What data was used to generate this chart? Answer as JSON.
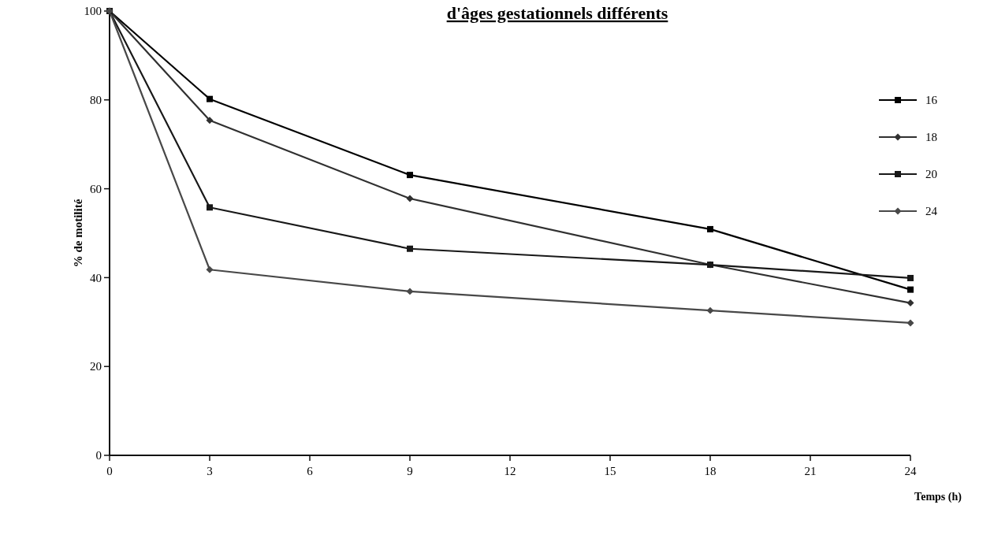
{
  "chart_data": {
    "type": "line",
    "title": "d'âges gestationnels différents",
    "xlabel": "Temps (h)",
    "ylabel": "% de motilité",
    "x": [
      0,
      3,
      9,
      18,
      24
    ],
    "xlim": [
      0,
      24
    ],
    "xticks": [
      0,
      3,
      6,
      9,
      12,
      15,
      18,
      21,
      24
    ],
    "ylim": [
      0,
      100
    ],
    "yticks": [
      0,
      20,
      40,
      60,
      80,
      100
    ],
    "grid": false,
    "legend": "right",
    "line_style": "solid",
    "series": [
      {
        "name": "16",
        "color": "#000000",
        "marker": "square",
        "values": [
          100,
          80.2,
          63.1,
          50.9,
          37.3
        ]
      },
      {
        "name": "18",
        "color": "#303030",
        "marker": "diamond",
        "values": [
          100,
          75.4,
          57.8,
          42.9,
          34.3
        ]
      },
      {
        "name": "20",
        "color": "#181818",
        "marker": "square",
        "values": [
          100,
          55.8,
          46.5,
          42.9,
          39.9
        ]
      },
      {
        "name": "24",
        "color": "#484848",
        "marker": "diamond",
        "values": [
          100,
          41.8,
          36.9,
          32.6,
          29.8
        ]
      }
    ]
  }
}
